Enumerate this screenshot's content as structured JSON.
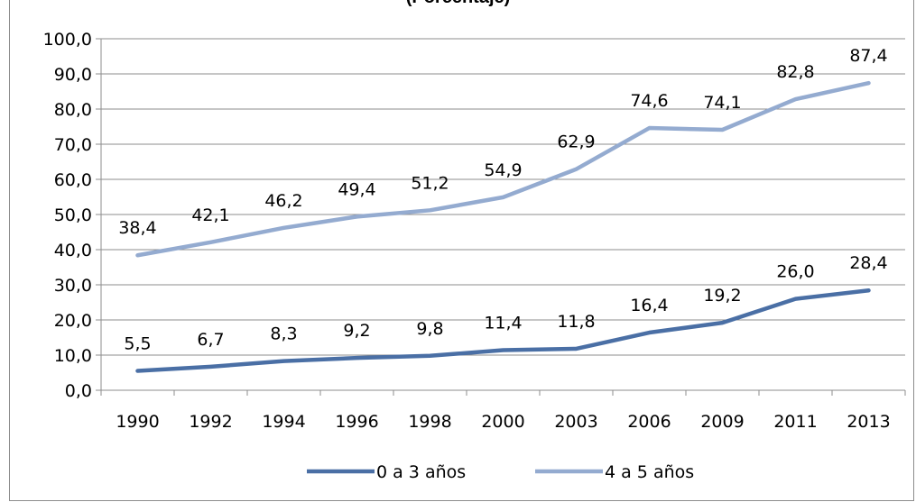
{
  "chart_data": {
    "type": "line",
    "title": "(Porcentaje)",
    "categories": [
      "1990",
      "1992",
      "1994",
      "1996",
      "1998",
      "2000",
      "2003",
      "2006",
      "2009",
      "2011",
      "2013"
    ],
    "series": [
      {
        "name": "0 a 3 años",
        "values": [
          5.5,
          6.7,
          8.3,
          9.2,
          9.8,
          11.4,
          11.8,
          16.4,
          19.2,
          26.0,
          28.4
        ],
        "labels": [
          "5,5",
          "6,7",
          "8,3",
          "9,2",
          "9,8",
          "11,4",
          "11,8",
          "16,4",
          "19,2",
          "26,0",
          "28,4"
        ],
        "color": "#4a6fa5"
      },
      {
        "name": "4 a 5 años",
        "values": [
          38.4,
          42.1,
          46.2,
          49.4,
          51.2,
          54.9,
          62.9,
          74.6,
          74.1,
          82.8,
          87.4
        ],
        "labels": [
          "38,4",
          "42,1",
          "46,2",
          "49,4",
          "51,2",
          "54,9",
          "62,9",
          "74,6",
          "74,1",
          "82,8",
          "87,4"
        ],
        "color": "#94abd0"
      }
    ],
    "ylim": [
      0,
      100
    ],
    "yticks": [
      "0,0",
      "10,0",
      "20,0",
      "30,0",
      "40,0",
      "50,0",
      "60,0",
      "70,0",
      "80,0",
      "90,0",
      "100,0"
    ],
    "grid": true,
    "legend": "bottom"
  }
}
